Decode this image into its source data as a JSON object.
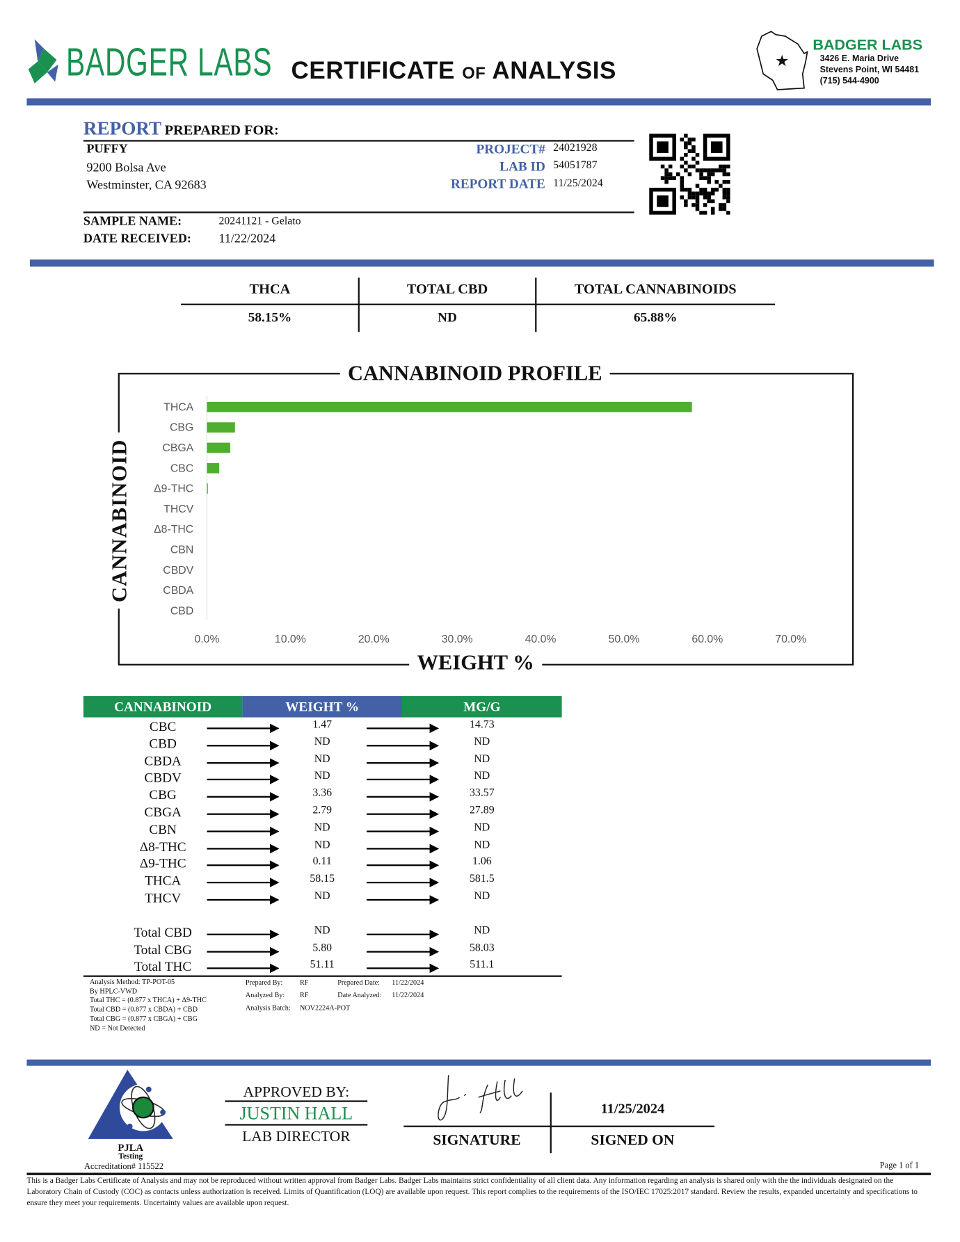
{
  "header": {
    "logo_text": "BADGER LABS",
    "title_main_1": "CERTIFICATE",
    "title_of": "of",
    "title_main_2": "ANALYSIS",
    "lab": {
      "name": "BADGER LABS",
      "address1": "3426 E. Maria Drive",
      "address2": "Stevens Point, WI 54481",
      "phone": "(715) 544-4900"
    }
  },
  "report": {
    "heading_accent": "REPORT",
    "heading_rest": "PREPARED FOR:",
    "client_name": "PUFFY",
    "client_address1": "9200 Bolsa Ave",
    "client_address2": "Westminster, CA 92683",
    "project_label": "PROJECT#",
    "project_value": "24021928",
    "labid_label": "LAB ID",
    "labid_value": "54051787",
    "date_label": "REPORT DATE",
    "date_value": "11/25/2024",
    "sample_label": "SAMPLE NAME:",
    "sample_value": "20241121 - Gelato",
    "received_label": "DATE RECEIVED:",
    "received_value": "11/22/2024"
  },
  "summary": {
    "headers": [
      "THCA",
      "TOTAL CBD",
      "TOTAL CANNABINOIDS"
    ],
    "values": [
      "58.15%",
      "ND",
      "65.88%"
    ]
  },
  "chart_data": {
    "type": "bar",
    "orientation": "horizontal",
    "title": "CANNABINOID PROFILE",
    "xlabel": "WEIGHT %",
    "ylabel": "CANNABINOID",
    "categories": [
      "THCA",
      "CBG",
      "CBGA",
      "CBC",
      "Δ9-THC",
      "THCV",
      "Δ8-THC",
      "CBN",
      "CBDV",
      "CBDA",
      "CBD"
    ],
    "values": [
      58.15,
      3.36,
      2.79,
      1.47,
      0.11,
      0,
      0,
      0,
      0,
      0,
      0
    ],
    "xlim": [
      0,
      70
    ],
    "xticks": [
      "0.0%",
      "10.0%",
      "20.0%",
      "30.0%",
      "40.0%",
      "50.0%",
      "60.0%",
      "70.0%"
    ],
    "grid": false,
    "bar_color": "#4fae2f"
  },
  "table": {
    "headers": [
      "CANNABINOID",
      "WEIGHT %",
      "MG/G"
    ],
    "rows": [
      [
        "CBC",
        "1.47",
        "14.73"
      ],
      [
        "CBD",
        "ND",
        "ND"
      ],
      [
        "CBDA",
        "ND",
        "ND"
      ],
      [
        "CBDV",
        "ND",
        "ND"
      ],
      [
        "CBG",
        "3.36",
        "33.57"
      ],
      [
        "CBGA",
        "2.79",
        "27.89"
      ],
      [
        "CBN",
        "ND",
        "ND"
      ],
      [
        "Δ8-THC",
        "ND",
        "ND"
      ],
      [
        "Δ9-THC",
        "0.11",
        "1.06"
      ],
      [
        "THCA",
        "58.15",
        "581.5"
      ],
      [
        "THCV",
        "ND",
        "ND"
      ]
    ],
    "totals": [
      [
        "Total CBD",
        "ND",
        "ND"
      ],
      [
        "Total CBG",
        "5.80",
        "58.03"
      ],
      [
        "Total THC",
        "51.11",
        "511.1"
      ]
    ]
  },
  "notes": {
    "method": [
      "Analysis Method: TP-POT-05",
      "By HPLC-VWD",
      "Total THC = (0.877 x  THCA) + Δ9-THC",
      "Total CBD = (0.877 x  CBDA) + CBD",
      "Total CBG = (0.877 x  CBGA) + CBG",
      "ND = Not Detected"
    ],
    "prepared_by_label": "Prepared By:",
    "prepared_by": "RF",
    "prepared_date_label": "Prepared Date:",
    "prepared_date": "11/22/2024",
    "analyzed_by_label": "Analyzed By:",
    "analyzed_by": "RF",
    "date_analyzed_label": "Date Analyzed:",
    "date_analyzed": "11/22/2024",
    "batch_label": "Analysis Batch:",
    "batch": "NOV2224A-POT"
  },
  "footer": {
    "pjla": "PJLA",
    "pjla_sub": "Testing",
    "accreditation": "Accreditation# 115522",
    "approved_label": "APPROVED BY:",
    "approver": "JUSTIN HALL",
    "approver_title": "LAB DIRECTOR",
    "signed_date": "11/25/2024",
    "signature_label": "SIGNATURE",
    "signed_on_label": "SIGNED ON",
    "page": "Page 1 of 1",
    "disclaimer": "This is a Badger Labs Certificate of Analysis and may not be reproduced without written approval from Badger Labs. Badger Labs maintains strict confidentiality of all client data. Any information regarding an analysis is shared only with the the individuals designated on the Laboratory Chain of Custody (COC) as contacts unless authorization is received. Limits of Quantification (LOQ) are available upon request. This report complies to the requirements of the ISO/IEC 17025:2017 standard. Review the results, expanded uncertainty and specifications to ensure they meet your requirements. Uncertainty values are available upon request."
  },
  "colors": {
    "blue": "#4361a6",
    "green": "#1a9150",
    "bar": "#4fae2f"
  }
}
